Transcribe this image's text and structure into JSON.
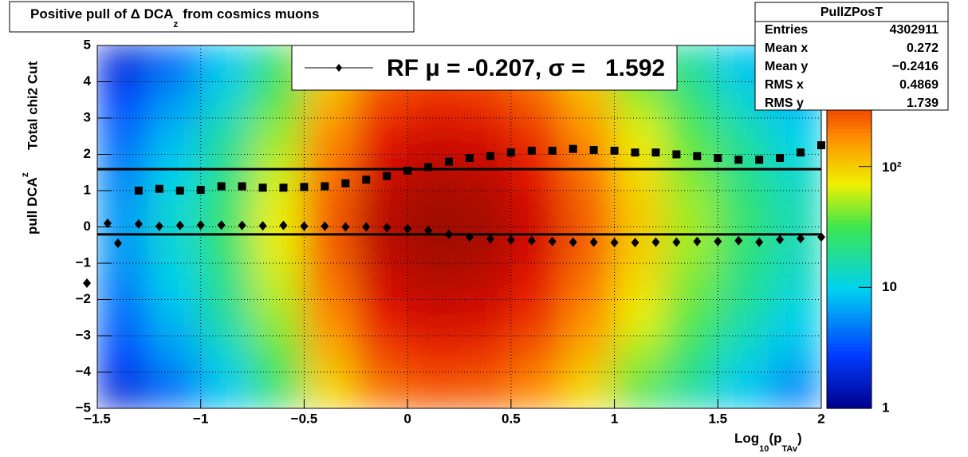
{
  "chart_data": {
    "type": "heatmap",
    "title": "Positive pull of Δ DCA",
    "title_sub": "z",
    "title_end": "from cosmics muons",
    "xlabel": "Log",
    "xlabel_sub1": "10",
    "xlabel_mid": "(p",
    "xlabel_sub2": "TAv",
    "xlabel_end": ")",
    "ylabel": "pull DCA",
    "ylabel_sub": "z",
    "ylabel2": "Total chi2 Cut",
    "xlim": [
      -1.5,
      2
    ],
    "ylim": [
      -5,
      5
    ],
    "zlim": [
      1,
      1000
    ],
    "zlog": true,
    "grid": true,
    "xticks": [
      {
        "value": -1.5,
        "label": "−1.5"
      },
      {
        "value": -1,
        "label": "−1"
      },
      {
        "value": -0.5,
        "label": "−0.5"
      },
      0,
      0.5,
      1,
      1.5,
      2
    ],
    "yticks": [
      {
        "value": -5,
        "label": "−5"
      },
      {
        "value": -4,
        "label": "−4"
      },
      {
        "value": -3,
        "label": "−3"
      },
      {
        "value": -2,
        "label": "−2"
      },
      {
        "value": -1,
        "label": "−1"
      },
      0,
      1,
      2,
      3,
      4,
      5
    ],
    "zticks": [
      1,
      10,
      {
        "value": 100,
        "label": "10²"
      }
    ],
    "xbins": [
      -1.5,
      -1.25,
      -1,
      -0.75,
      -0.5,
      -0.25,
      0,
      0.25,
      0.5,
      0.75,
      1,
      1.25,
      1.5,
      1.75,
      2
    ],
    "ybins": [
      -5,
      -4,
      -3,
      -2,
      -1,
      0,
      1,
      2,
      3,
      4,
      5
    ],
    "z": [
      [
        2,
        3,
        4,
        5,
        6,
        6,
        5,
        4,
        3,
        2
      ],
      [
        4,
        6,
        8,
        10,
        12,
        12,
        10,
        8,
        6,
        4
      ],
      [
        9,
        12,
        18,
        21,
        25,
        25,
        21,
        18,
        12,
        9
      ],
      [
        25,
        35,
        49,
        60,
        70,
        70,
        60,
        49,
        35,
        25
      ],
      [
        88,
        125,
        175,
        213,
        250,
        250,
        213,
        175,
        125,
        88
      ],
      [
        210,
        300,
        420,
        510,
        600,
        600,
        510,
        420,
        300,
        210
      ],
      [
        263,
        375,
        525,
        638,
        750,
        750,
        638,
        525,
        375,
        263
      ],
      [
        245,
        350,
        490,
        595,
        700,
        700,
        595,
        490,
        350,
        245
      ],
      [
        175,
        250,
        350,
        425,
        500,
        500,
        425,
        350,
        250,
        175
      ],
      [
        88,
        125,
        175,
        213,
        250,
        250,
        213,
        175,
        125,
        88
      ],
      [
        35,
        50,
        70,
        85,
        100,
        100,
        85,
        70,
        50,
        35
      ],
      [
        18,
        25,
        35,
        42,
        50,
        50,
        42,
        35,
        25,
        18
      ],
      [
        9,
        12,
        18,
        21,
        25,
        25,
        21,
        18,
        12,
        9
      ],
      [
        5,
        8,
        10,
        13,
        15,
        15,
        13,
        10,
        8,
        5
      ]
    ],
    "series": [
      {
        "name": "sigma",
        "marker": "square",
        "x": [
          -1.3,
          -1.2,
          -1.1,
          -1.0,
          -0.9,
          -0.8,
          -0.7,
          -0.6,
          -0.5,
          -0.4,
          -0.3,
          -0.2,
          -0.1,
          0,
          0.1,
          0.2,
          0.3,
          0.4,
          0.5,
          0.6,
          0.7,
          0.8,
          0.9,
          1.0,
          1.1,
          1.2,
          1.3,
          1.4,
          1.5,
          1.6,
          1.7,
          1.8,
          1.9,
          2.0
        ],
        "values": [
          1.0,
          1.05,
          1.0,
          1.02,
          1.12,
          1.12,
          1.08,
          1.08,
          1.1,
          1.12,
          1.2,
          1.3,
          1.4,
          1.55,
          1.65,
          1.8,
          1.9,
          1.95,
          2.05,
          2.1,
          2.1,
          2.15,
          2.12,
          2.1,
          2.05,
          2.05,
          2.0,
          1.95,
          1.9,
          1.85,
          1.85,
          1.9,
          2.05,
          2.25
        ]
      },
      {
        "name": "mean",
        "marker": "diamond",
        "x": [
          -1.55,
          -1.45,
          -1.4,
          -1.3,
          -1.2,
          -1.1,
          -1.0,
          -0.9,
          -0.8,
          -0.7,
          -0.6,
          -0.5,
          -0.4,
          -0.3,
          -0.2,
          -0.1,
          0,
          0.1,
          0.2,
          0.3,
          0.4,
          0.5,
          0.6,
          0.7,
          0.8,
          0.9,
          1.0,
          1.1,
          1.2,
          1.3,
          1.4,
          1.5,
          1.6,
          1.7,
          1.8,
          1.9,
          2.0
        ],
        "values": [
          -1.55,
          0.1,
          -0.45,
          0.08,
          0.02,
          0.04,
          0.05,
          0.05,
          0.04,
          0.03,
          0.04,
          0.02,
          0.02,
          0.0,
          0.0,
          -0.02,
          -0.05,
          -0.1,
          -0.2,
          -0.28,
          -0.33,
          -0.36,
          -0.38,
          -0.4,
          -0.42,
          -0.42,
          -0.43,
          -0.43,
          -0.42,
          -0.42,
          -0.4,
          -0.4,
          -0.38,
          -0.42,
          -0.35,
          -0.32,
          -0.28
        ]
      }
    ],
    "hlines": [
      1.592,
      -0.207
    ],
    "legend": "RF μ = -0.207, σ =   1.592",
    "stats": {
      "name": "PullZPosT",
      "rows": [
        [
          "Entries",
          "4302911"
        ],
        [
          "Mean x",
          "0.272"
        ],
        [
          "Mean y",
          "−0.2416"
        ],
        [
          "RMS x",
          "0.4869"
        ],
        [
          "RMS y",
          "1.739"
        ]
      ]
    }
  }
}
